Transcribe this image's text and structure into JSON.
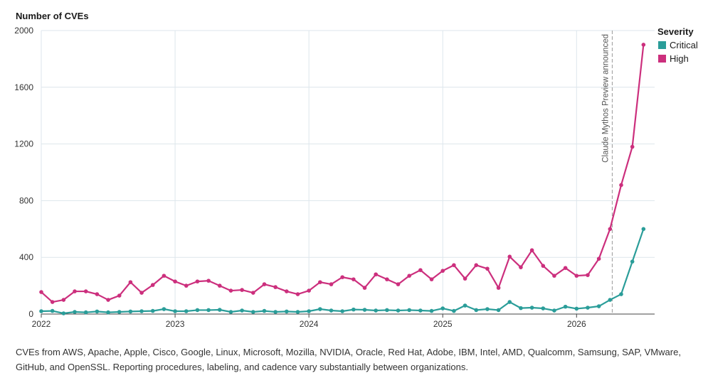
{
  "chart_data": {
    "type": "line",
    "ylabel": "Number of CVEs",
    "ylim": [
      0,
      2000
    ],
    "yticks": [
      0,
      400,
      800,
      1200,
      1600,
      2000
    ],
    "xlim": [
      "2022-01",
      "2026-08"
    ],
    "xticks": [
      "2022",
      "2023",
      "2024",
      "2025",
      "2026"
    ],
    "grid": true,
    "legend": {
      "title": "Severity",
      "position": "top-right"
    },
    "annotation": {
      "text": "Claude Mythos Preview announced",
      "x": "2026-04-07"
    },
    "x": [
      "2022-01",
      "2022-02",
      "2022-03",
      "2022-04",
      "2022-05",
      "2022-06",
      "2022-07",
      "2022-08",
      "2022-09",
      "2022-10",
      "2022-11",
      "2022-12",
      "2023-01",
      "2023-02",
      "2023-03",
      "2023-04",
      "2023-05",
      "2023-06",
      "2023-07",
      "2023-08",
      "2023-09",
      "2023-10",
      "2023-11",
      "2023-12",
      "2024-01",
      "2024-02",
      "2024-03",
      "2024-04",
      "2024-05",
      "2024-06",
      "2024-07",
      "2024-08",
      "2024-09",
      "2024-10",
      "2024-11",
      "2024-12",
      "2025-01",
      "2025-02",
      "2025-03",
      "2025-04",
      "2025-05",
      "2025-06",
      "2025-07",
      "2025-08",
      "2025-09",
      "2025-10",
      "2025-11",
      "2025-12",
      "2026-01",
      "2026-02",
      "2026-03",
      "2026-04",
      "2026-05",
      "2026-06",
      "2026-07"
    ],
    "series": [
      {
        "name": "Critical",
        "color": "#2a9d99",
        "values": [
          20,
          22,
          5,
          15,
          12,
          18,
          12,
          15,
          18,
          20,
          22,
          35,
          20,
          20,
          28,
          28,
          30,
          15,
          25,
          15,
          22,
          15,
          18,
          15,
          20,
          35,
          25,
          20,
          32,
          30,
          25,
          28,
          25,
          28,
          25,
          22,
          40,
          22,
          60,
          28,
          35,
          28,
          85,
          42,
          45,
          40,
          25,
          52,
          38,
          45,
          55,
          100,
          140,
          370,
          600
        ]
      },
      {
        "name": "High",
        "color": "#cc2f7d",
        "values": [
          155,
          85,
          100,
          160,
          160,
          140,
          100,
          130,
          225,
          150,
          205,
          270,
          230,
          200,
          230,
          235,
          200,
          165,
          170,
          150,
          210,
          190,
          160,
          140,
          165,
          225,
          210,
          260,
          245,
          185,
          280,
          245,
          210,
          270,
          310,
          245,
          305,
          345,
          250,
          345,
          320,
          185,
          405,
          330,
          450,
          340,
          270,
          325,
          270,
          275,
          390,
          600,
          910,
          1180,
          1900
        ]
      }
    ]
  },
  "footnote": "CVEs from AWS, Apache, Apple, Cisco, Google, Linux, Microsoft, Mozilla, NVIDIA, Oracle, Red Hat, Adobe, IBM, Intel, AMD, Qualcomm, Samsung, SAP, VMware, GitHub, and OpenSSL. Reporting procedures, labeling, and cadence vary substantially between organizations."
}
